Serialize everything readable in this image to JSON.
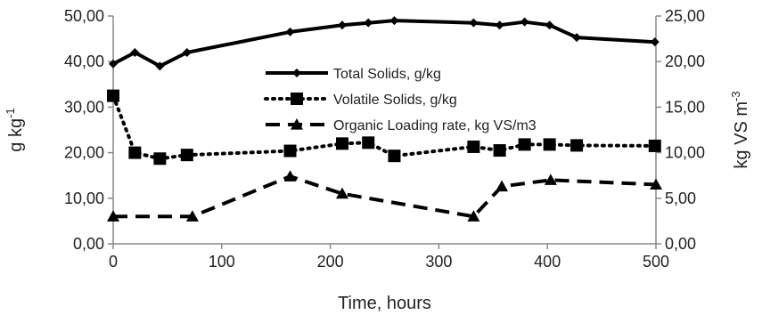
{
  "chart_data": {
    "type": "line",
    "title": "",
    "xlabel": "Time, hours",
    "ylabel_left": "g kg",
    "ylabel_left_sup": "-1",
    "ylabel_right": "kg VS m",
    "ylabel_right_sup": "-3",
    "xlim": [
      0,
      500
    ],
    "x_ticks": [
      0,
      100,
      200,
      300,
      400,
      500
    ],
    "x_tick_labels": [
      "0",
      "100",
      "200",
      "300",
      "400",
      "500"
    ],
    "ylim_left": [
      0,
      50
    ],
    "y_ticks_left": [
      0,
      10,
      20,
      30,
      40,
      50
    ],
    "y_tick_labels_left": [
      "0,00",
      "10,00",
      "20,00",
      "30,00",
      "40,00",
      "50,00"
    ],
    "ylim_right": [
      0,
      25
    ],
    "y_ticks_right": [
      0,
      5,
      10,
      15,
      20,
      25
    ],
    "y_tick_labels_right": [
      "0,00",
      "5,00",
      "10,00",
      "15,00",
      "20,00",
      "25,00"
    ],
    "grid": false,
    "legend_position": "center-right",
    "series": [
      {
        "name": "Total Solids, g/kg",
        "axis": "left",
        "line_style": "solid",
        "marker": "diamond",
        "color": "#000000",
        "x": [
          0,
          20,
          43,
          68,
          163,
          211,
          235,
          259,
          332,
          356,
          379,
          402,
          427,
          499
        ],
        "values": [
          39.5,
          42.0,
          39.0,
          42.0,
          46.5,
          48.0,
          48.5,
          49.0,
          48.5,
          48.0,
          48.7,
          48.0,
          45.3,
          44.3
        ]
      },
      {
        "name": "Volatile Solids, g/kg",
        "axis": "left",
        "line_style": "dotted",
        "marker": "square",
        "color": "#000000",
        "x": [
          0,
          20,
          43,
          68,
          163,
          211,
          235,
          259,
          332,
          356,
          379,
          402,
          427,
          499
        ],
        "values": [
          32.5,
          20.0,
          18.7,
          19.5,
          20.4,
          22.0,
          22.2,
          19.3,
          21.3,
          20.5,
          21.8,
          21.8,
          21.6,
          21.5
        ]
      },
      {
        "name": "Organic Loading rate, kg VS/m3",
        "axis": "right",
        "line_style": "dashed",
        "marker": "triangle",
        "color": "#000000",
        "x": [
          0,
          73,
          163,
          211,
          332,
          358,
          403,
          500
        ],
        "values": [
          3.0,
          3.0,
          7.4,
          5.5,
          3.0,
          6.3,
          7.0,
          6.5
        ]
      }
    ]
  }
}
